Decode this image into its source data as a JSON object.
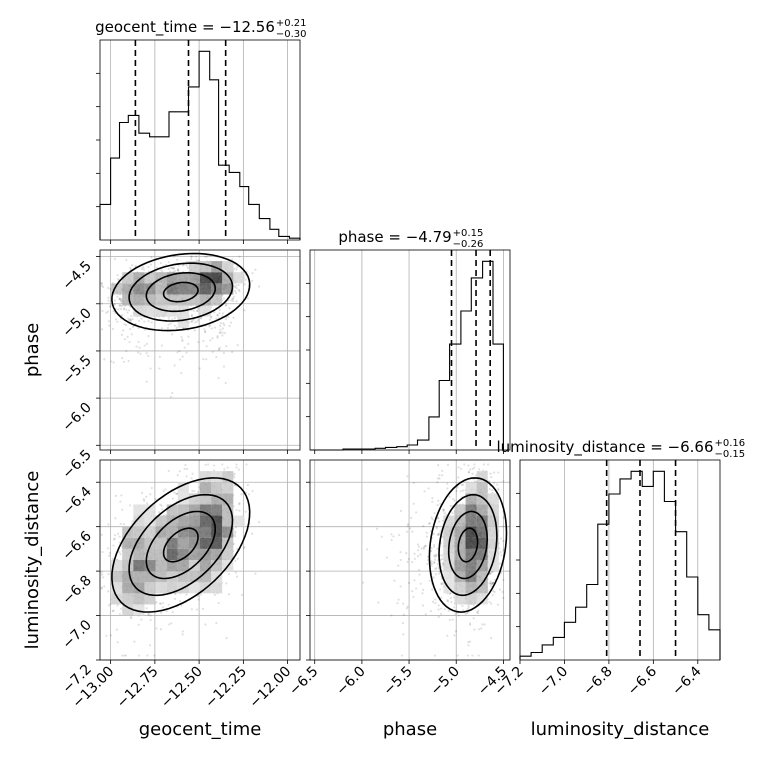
{
  "chart_data": {
    "type": "corner",
    "parameters": [
      {
        "name": "geocent_time",
        "xlabel": "geocent_time",
        "title_main": "geocent_time = −12.56",
        "title_sup": "+0.21",
        "title_sub": "−0.30",
        "range": [
          -13.06,
          -11.93
        ],
        "ticks": [
          -13.0,
          -12.75,
          -12.5,
          -12.25,
          -12.0
        ],
        "tick_labels": [
          "−13.00",
          "−12.75",
          "−12.50",
          "−12.25",
          "−12.00"
        ],
        "quantiles": [
          -12.86,
          -12.56,
          -12.35
        ],
        "hist": {
          "edges": [
            -13.06,
            -13.0,
            -12.95,
            -12.9,
            -12.84,
            -12.78,
            -12.73,
            -12.67,
            -12.61,
            -12.56,
            -12.5,
            -12.44,
            -12.39,
            -12.33,
            -12.27,
            -12.22,
            -12.16,
            -12.1,
            -12.05,
            -11.99,
            -11.93
          ],
          "counts": [
            10,
            23,
            33,
            35,
            30,
            29,
            29,
            36,
            36,
            43,
            53,
            45,
            21,
            19,
            15,
            10,
            6,
            3,
            1,
            0.5
          ]
        }
      },
      {
        "name": "phase",
        "xlabel": "phase",
        "ylabel": "phase",
        "title_main": "phase = −4.79",
        "title_sup": "+0.15",
        "title_sub": "−0.26",
        "range": [
          -6.55,
          -4.43
        ],
        "ticks": [
          -6.5,
          -6.0,
          -5.5,
          -5.0,
          -4.5
        ],
        "tick_labels": [
          "−6.5",
          "−6.0",
          "−5.5",
          "−5.0",
          "−4.5"
        ],
        "quantiles": [
          -5.05,
          -4.79,
          -4.64
        ],
        "hist": {
          "edges": [
            -6.55,
            -6.43,
            -6.32,
            -6.2,
            -6.09,
            -5.98,
            -5.86,
            -5.75,
            -5.63,
            -5.52,
            -5.41,
            -5.29,
            -5.18,
            -5.07,
            -4.95,
            -4.84,
            -4.72,
            -4.61,
            -4.5
          ],
          "counts": [
            0,
            0,
            0,
            0.3,
            0.3,
            0.3,
            0.5,
            0.8,
            1,
            1.5,
            3,
            10,
            21,
            32,
            42,
            52,
            57,
            32
          ]
        }
      },
      {
        "name": "luminosity_distance",
        "xlabel": "luminosity_distance",
        "ylabel": "luminosity_distance",
        "title_main": "luminosity_distance = −6.66",
        "title_sup": "+0.16",
        "title_sub": "−0.15",
        "range": [
          -7.2,
          -6.3
        ],
        "ticks": [
          -7.2,
          -7.0,
          -6.8,
          -6.6,
          -6.4
        ],
        "tick_labels": [
          "−7.2",
          "−7.0",
          "−6.8",
          "−6.6",
          "−6.4"
        ],
        "quantiles": [
          -6.81,
          -6.66,
          -6.5
        ],
        "hist": {
          "edges": [
            -7.2,
            -7.15,
            -7.1,
            -7.05,
            -7.0,
            -6.95,
            -6.9,
            -6.85,
            -6.8,
            -6.75,
            -6.7,
            -6.65,
            -6.6,
            -6.55,
            -6.5,
            -6.45,
            -6.4,
            -6.35,
            -6.3
          ],
          "counts": [
            0.5,
            1,
            2,
            3,
            5,
            7,
            10,
            18,
            22,
            24,
            25,
            23,
            25,
            21,
            17,
            11,
            6,
            4
          ]
        }
      }
    ]
  }
}
